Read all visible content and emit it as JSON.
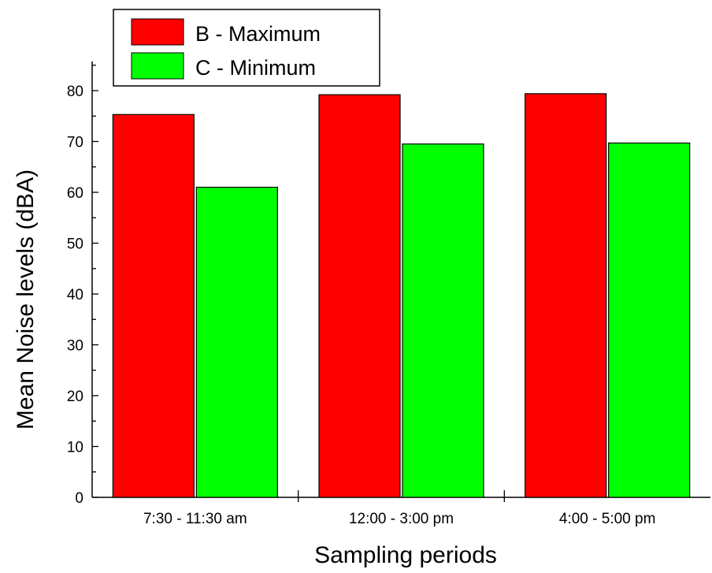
{
  "chart_data": {
    "type": "bar",
    "xlabel": "Sampling periods",
    "ylabel": "Mean Noise levels (dBA)",
    "categories": [
      "7:30 - 11:30 am",
      "12:00 - 3:00 pm",
      "4:00 - 5:00 pm"
    ],
    "series": [
      {
        "name": "B - Maximum",
        "color": "#ff0000",
        "values": [
          75.3,
          79.2,
          79.4
        ]
      },
      {
        "name": "C - Minimum",
        "color": "#00ff00",
        "values": [
          61.0,
          69.5,
          69.7
        ]
      }
    ],
    "ylim": [
      0,
      85
    ],
    "yticks": [
      "0",
      "10",
      "20",
      "30",
      "40",
      "50",
      "60",
      "70",
      "80"
    ],
    "legend_position": "top-left",
    "grid": false
  }
}
